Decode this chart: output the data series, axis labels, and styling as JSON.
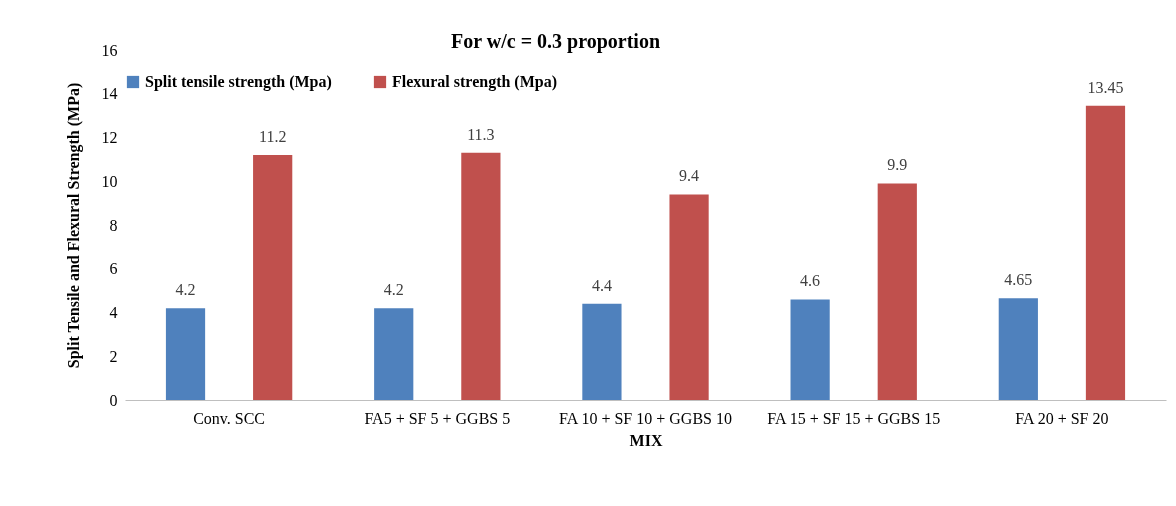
{
  "chart_data": {
    "type": "bar",
    "title": "For w/c = 0.3 proportion",
    "xlabel": "MIX",
    "ylabel": "Split Tensile and Flexural Strength (MPa)",
    "categories": [
      "Conv.  SCC",
      "FA5 + SF 5 + GGBS 5",
      "FA 10 + SF 10 + GGBS 10",
      "FA 15 + SF 15 + GGBS 15",
      "FA 20 + SF 20"
    ],
    "series": [
      {
        "name": "Split tensile strength (Mpa)",
        "color": "#4f81bd",
        "values": [
          4.2,
          4.2,
          4.4,
          4.6,
          4.65
        ]
      },
      {
        "name": "Flexural strength (Mpa)",
        "color": "#c0504d",
        "values": [
          11.2,
          11.3,
          9.4,
          9.9,
          13.45
        ]
      }
    ],
    "ylim": [
      0,
      16
    ],
    "yticks": [
      0,
      2,
      4,
      6,
      8,
      10,
      12,
      14,
      16
    ],
    "data_labels": true,
    "legend": "top",
    "grid": false
  }
}
